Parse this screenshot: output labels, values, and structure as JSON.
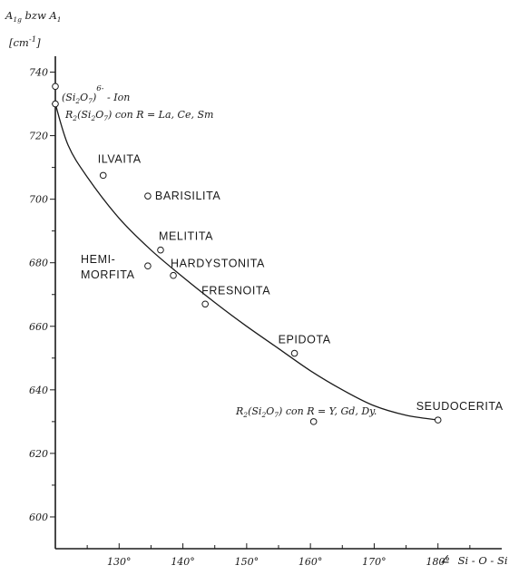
{
  "chart_data": {
    "type": "scatter",
    "ylabel_line1": "A1g bzw A1",
    "ylabel_line2": "[cm-1]",
    "xlabel": "∠ Si-O-Si",
    "xlim": [
      120,
      190
    ],
    "ylim": [
      590,
      745
    ],
    "x_ticks": [
      "130°",
      "140°",
      "150°",
      "160°",
      "170°",
      "180°"
    ],
    "x_tick_values": [
      130,
      140,
      150,
      160,
      170,
      180
    ],
    "y_ticks": [
      "740",
      "720",
      "700",
      "680",
      "660",
      "640",
      "620",
      "600"
    ],
    "y_tick_values": [
      740,
      720,
      700,
      680,
      660,
      640,
      620,
      600
    ],
    "points": [
      {
        "label": "ILVAITA",
        "x": 127.5,
        "y": 707.5
      },
      {
        "label": "BARISILITA",
        "x": 134.5,
        "y": 701
      },
      {
        "label": "MELITITA",
        "x": 136.5,
        "y": 684
      },
      {
        "label": "HEMI-MORFITA",
        "x": 134.5,
        "y": 679
      },
      {
        "label": "HARDYSTONITA",
        "x": 138.5,
        "y": 676
      },
      {
        "label": "FRESNOITA",
        "x": 143.5,
        "y": 667
      },
      {
        "label": "EPIDOTA",
        "x": 157.5,
        "y": 651.5
      },
      {
        "label": "SEUDOCERITA",
        "x": 180,
        "y": 630.5
      },
      {
        "label": "R2(Si2O7) con R=Y,Gd,Dy.",
        "x": 160.5,
        "y": 630
      },
      {
        "label": "(Si2O7)6- Ion",
        "x": 120,
        "y": 735.5
      },
      {
        "label": "R2(Si2O7) con R=La,Ce,Sm",
        "x": 120,
        "y": 730
      }
    ],
    "fit_curve": {
      "x": [
        120,
        122,
        125,
        130,
        135,
        140,
        145,
        150,
        155,
        160,
        165,
        170,
        175,
        180
      ],
      "y": [
        730,
        717,
        707,
        694,
        684,
        675.5,
        667.5,
        660,
        653,
        646,
        640,
        635,
        632,
        630.5
      ]
    }
  },
  "labels": {
    "ylabel_a": "A",
    "ylabel_a_sub": "1g",
    "ylabel_mid": " bzw A",
    "ylabel_mid_sub": "1",
    "ylabel_unit_open": "[cm",
    "ylabel_unit_sup": "-1",
    "ylabel_unit_close": "]",
    "ion_open": "(Si",
    "ion_sub1": "2",
    "ion_mid": "O",
    "ion_sub2": "7",
    "ion_close": ")",
    "ion_charge": "6-",
    "ion_tail": " - Ion",
    "r_la_prefix": "R",
    "r_la_sub1": "2",
    "r_la_open": "(Si",
    "r_la_sub2": "2",
    "r_la_mid": "O",
    "r_la_sub3": "7",
    "r_la_close": ")",
    "r_la_tail": " con R = La, Ce, Sm",
    "r_y_prefix": "R",
    "r_y_sub1": "2",
    "r_y_open": "(Si",
    "r_y_sub2": "2",
    "r_y_mid": "O",
    "r_y_sub3": "7",
    "r_y_close": ")",
    "r_y_tail": " con R = Y, Gd, Dy.",
    "hemi_line1": "HEMI-",
    "hemi_line2": "MORFITA",
    "xlabel_angle": "∠",
    "xlabel_text": "Si - O - Si"
  }
}
